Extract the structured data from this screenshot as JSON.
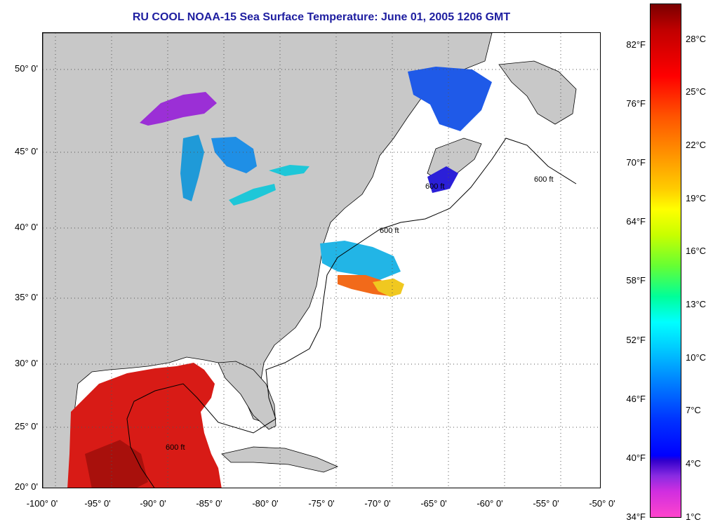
{
  "title": "RU COOL  NOAA-15  Sea Surface Temperature:  June 01, 2005 1206 GMT",
  "title_color": "#1e1ea0",
  "land_color": "#c8c8c8",
  "lat_labels": [
    "50° 0'",
    "45° 0'",
    "40° 0'",
    "35° 0'",
    "30° 0'",
    "25° 0'",
    "20° 0'"
  ],
  "lon_labels": [
    "-100° 0'",
    "-95° 0'",
    "-90° 0'",
    "-85° 0'",
    "-80° 0'",
    "-75° 0'",
    "-70° 0'",
    "-65° 0'",
    "-60° 0'",
    "-55° 0'",
    "-50° 0'"
  ],
  "contour_label": "600 ft",
  "colorbar": {
    "fahrenheit": [
      "82°F",
      "76°F",
      "70°F",
      "64°F",
      "58°F",
      "52°F",
      "46°F",
      "40°F",
      "34°F"
    ],
    "celsius": [
      "28°C",
      "25°C",
      "22°C",
      "19°C",
      "16°C",
      "13°C",
      "10°C",
      "7°C",
      "4°C",
      "1°C"
    ]
  }
}
